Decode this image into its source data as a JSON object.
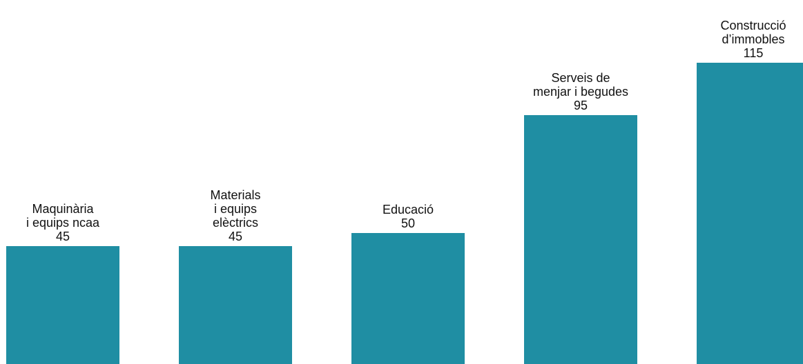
{
  "chart_data": {
    "type": "bar",
    "categories": [
      [
        "Maquinària",
        "i equips ncaa"
      ],
      [
        "Materials",
        "i equips",
        "elèctrics"
      ],
      [
        "Educació"
      ],
      [
        "Serveis de",
        "menjar i begudes"
      ],
      [
        "Construcció",
        "d’immobles"
      ]
    ],
    "values": [
      45,
      45,
      50,
      95,
      115
    ],
    "value_labels": [
      "45",
      "45",
      "50",
      "95",
      "115"
    ],
    "bar_color": "#1f8ea3",
    "title": "",
    "xlabel": "",
    "ylabel": "",
    "ylim": [
      0,
      115
    ],
    "grid": false,
    "axes_visible": false
  }
}
